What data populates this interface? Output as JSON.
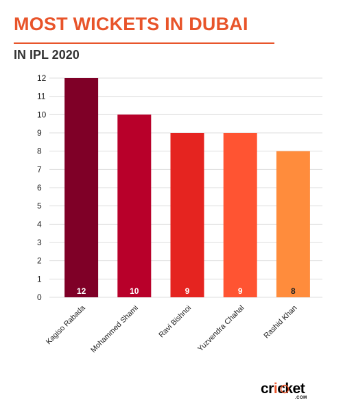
{
  "header": {
    "title": "MOST WICKETS IN DUBAI",
    "subtitle": "IN IPL 2020"
  },
  "colors": {
    "accent": "#e8542a",
    "grid": "#dddddd",
    "axis_text": "#222222"
  },
  "chart_data": {
    "type": "bar",
    "title": "MOST WICKETS IN DUBAI",
    "subtitle": "IN IPL 2020",
    "xlabel": "",
    "ylabel": "",
    "categories": [
      "Kagiso Rabada",
      "Mohammed Shami",
      "Ravi Bishnoi",
      "Yuzvendra Chahal",
      "Rashid Khan"
    ],
    "values": [
      12,
      10,
      9,
      9,
      8
    ],
    "bar_colors": [
      "#7f0027",
      "#b8002a",
      "#e52420",
      "#ff5432",
      "#ff8c3c"
    ],
    "label_colors": [
      "#ffffff",
      "#ffffff",
      "#ffffff",
      "#ffffff",
      "#222222"
    ],
    "data_labels": [
      "12",
      "10",
      "9",
      "9",
      "8"
    ],
    "ylim": [
      0,
      12
    ],
    "yticks": [
      0,
      1,
      2,
      3,
      4,
      5,
      6,
      7,
      8,
      9,
      10,
      11,
      12
    ],
    "grid": true,
    "legend": "none"
  },
  "brand": {
    "logo_text_pre": "cr",
    "logo_text_i": "i",
    "logo_text_post": "cket",
    "logo_sub": ".COM"
  }
}
